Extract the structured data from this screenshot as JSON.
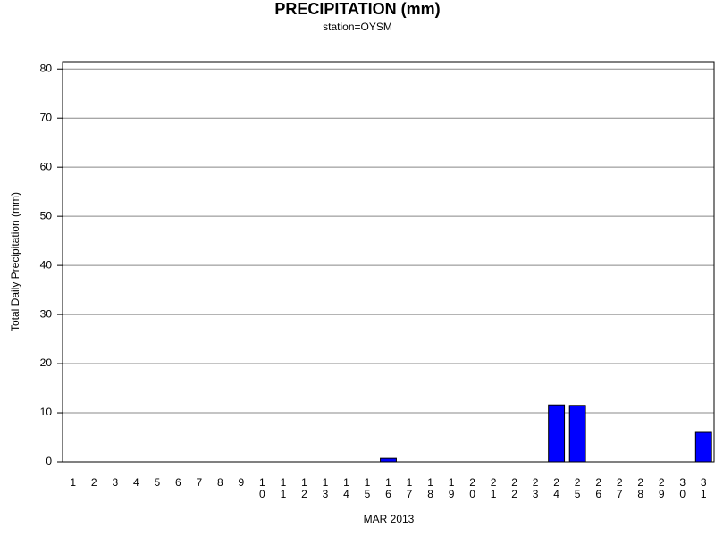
{
  "chart_data": {
    "type": "bar",
    "title": "PRECIPITATION (mm)",
    "subtitle": "station=OYSM",
    "x_label": "MAR 2013",
    "y_label": "Total Daily Precipitation (mm)",
    "categories": [
      "1",
      "2",
      "3",
      "4",
      "5",
      "6",
      "7",
      "8",
      "9",
      "10",
      "11",
      "12",
      "13",
      "14",
      "15",
      "16",
      "17",
      "18",
      "19",
      "20",
      "21",
      "22",
      "23",
      "24",
      "25",
      "26",
      "27",
      "28",
      "29",
      "30",
      "31"
    ],
    "values": [
      0,
      0,
      0,
      0,
      0,
      0,
      0,
      0,
      0,
      0,
      0,
      0,
      0,
      0,
      0,
      0.7,
      0,
      0,
      0,
      0,
      0,
      0,
      0,
      11.6,
      11.5,
      0,
      0,
      0,
      0,
      0,
      6.0
    ],
    "color": "#0000ff",
    "ylim": [
      0,
      81.5
    ],
    "yticks": [
      0,
      10,
      20,
      30,
      40,
      50,
      60,
      70,
      80
    ],
    "grid": true
  }
}
